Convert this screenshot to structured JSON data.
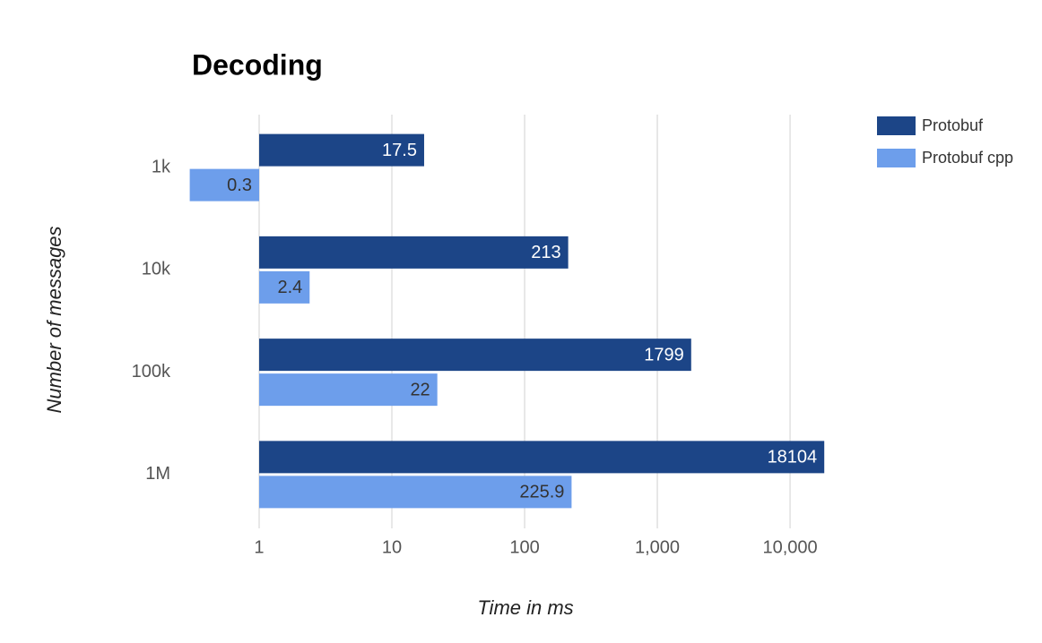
{
  "chart_data": {
    "type": "hbar",
    "title": "Decoding",
    "x_label": "Time in ms",
    "y_label": "Number of messages",
    "categories": [
      "1k",
      "10k",
      "100k",
      "1M"
    ],
    "series": [
      {
        "name": "Protobuf",
        "color": "#1c4587",
        "label_color": "#ffffff",
        "values": [
          17.5,
          213,
          1799,
          18104
        ]
      },
      {
        "name": "Protobuf cpp",
        "color": "#6d9eeb",
        "label_color": "#333333",
        "values": [
          0.3,
          2.4,
          22,
          225.9
        ]
      }
    ],
    "xscale": "log",
    "xlim": [
      0.3,
      20000
    ],
    "xticks": [
      1,
      10,
      100,
      {
        "value": 1000,
        "label": "1,000"
      },
      {
        "value": 10000,
        "label": "10,000"
      }
    ],
    "grid": true,
    "legend": "top-right"
  }
}
